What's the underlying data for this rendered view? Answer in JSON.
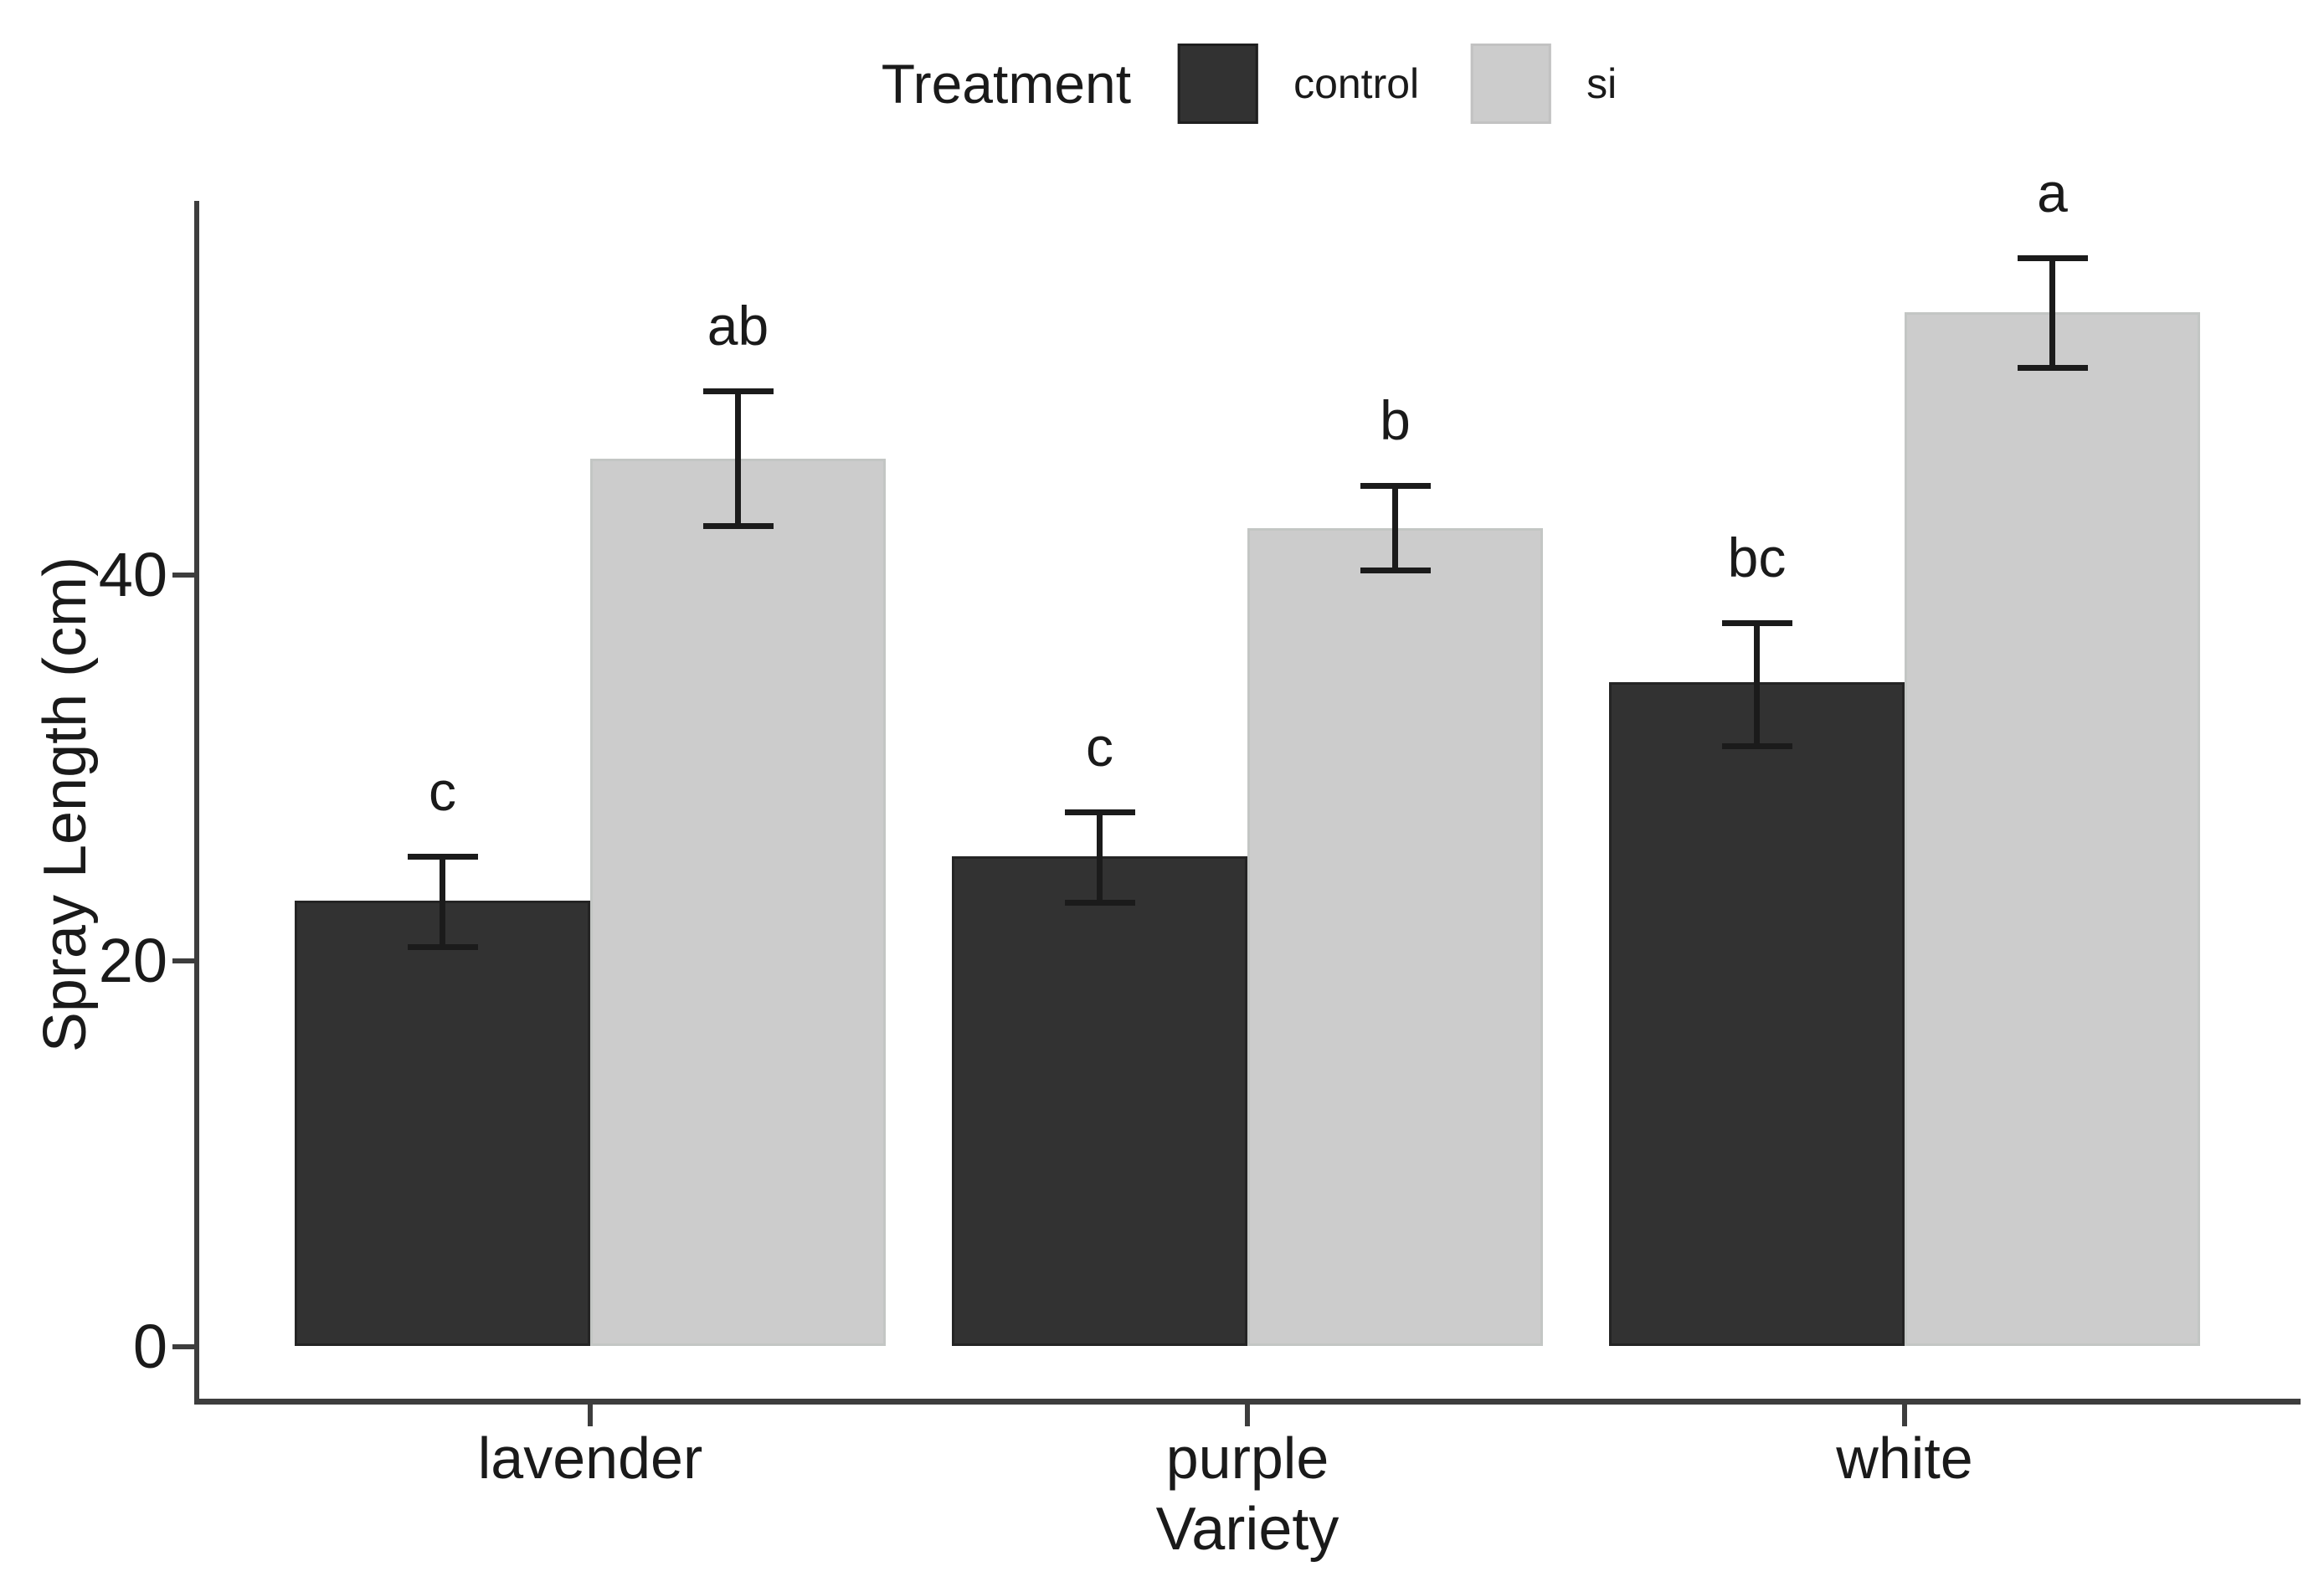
{
  "chart_data": {
    "type": "bar",
    "title": "",
    "legend_title": "Treatment",
    "legend_position": "top",
    "xlabel": "Variety",
    "ylabel": "Spray Length (cm)",
    "categories": [
      "lavender",
      "purple",
      "white"
    ],
    "y_ticks": [
      0,
      20,
      40
    ],
    "ylim": [
      0,
      59
    ],
    "grid": false,
    "series": [
      {
        "name": "control",
        "color": "#323232",
        "values": [
          23.1,
          25.4,
          34.4
        ],
        "error_low": [
          20.7,
          23.0,
          31.1
        ],
        "error_high": [
          25.4,
          27.7,
          37.5
        ],
        "sig_letters": [
          "c",
          "c",
          "bc"
        ]
      },
      {
        "name": "si",
        "color": "#cccccc",
        "values": [
          46.0,
          42.4,
          53.6
        ],
        "error_low": [
          42.5,
          40.2,
          50.7
        ],
        "error_high": [
          49.5,
          44.6,
          56.4
        ],
        "sig_letters": [
          "ab",
          "b",
          "a"
        ]
      }
    ]
  }
}
